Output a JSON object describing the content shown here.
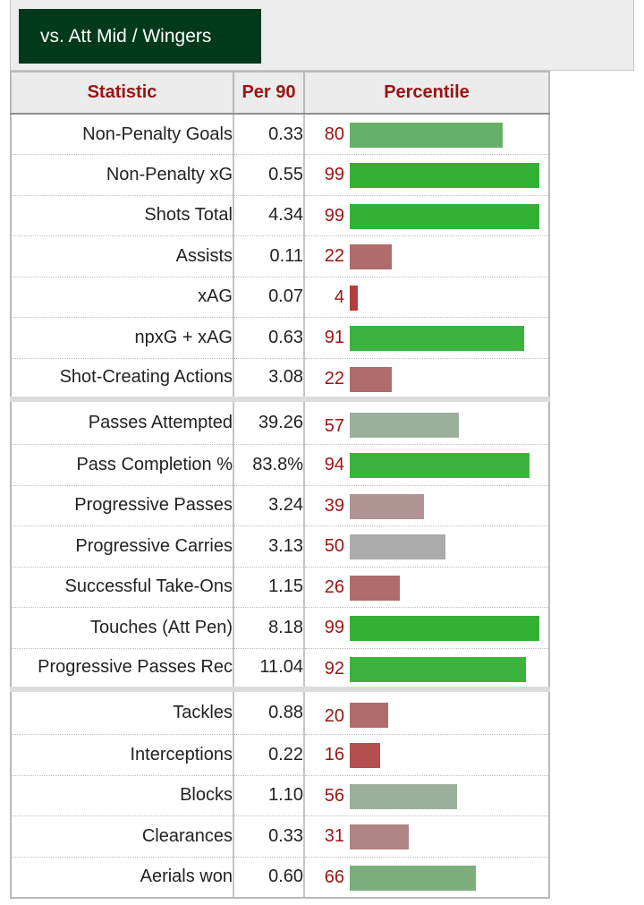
{
  "tab": {
    "label": "vs. Att Mid / Wingers"
  },
  "table": {
    "headers": {
      "statistic": "Statistic",
      "per90": "Per 90",
      "percentile": "Percentile"
    },
    "rows": [
      {
        "name": "Non-Penalty Goals",
        "per90": "0.33",
        "percentile": 80,
        "bar_color": "#67b067",
        "group_start": false
      },
      {
        "name": "Non-Penalty xG",
        "per90": "0.55",
        "percentile": 99,
        "bar_color": "#34b134",
        "group_start": false
      },
      {
        "name": "Shots Total",
        "per90": "4.34",
        "percentile": 99,
        "bar_color": "#34b134",
        "group_start": false
      },
      {
        "name": "Assists",
        "per90": "0.11",
        "percentile": 22,
        "bar_color": "#b06b6b",
        "group_start": false
      },
      {
        "name": "xAG",
        "per90": "0.07",
        "percentile": 4,
        "bar_color": "#b33f3f",
        "group_start": false
      },
      {
        "name": "npxG + xAG",
        "per90": "0.63",
        "percentile": 91,
        "bar_color": "#3cb33c",
        "group_start": false
      },
      {
        "name": "Shot-Creating Actions",
        "per90": "3.08",
        "percentile": 22,
        "bar_color": "#b06b6b",
        "group_start": false
      },
      {
        "name": "Passes Attempted",
        "per90": "39.26",
        "percentile": 57,
        "bar_color": "#9bb09b",
        "group_start": true
      },
      {
        "name": "Pass Completion %",
        "per90": "83.8%",
        "percentile": 94,
        "bar_color": "#3cb33c",
        "group_start": false
      },
      {
        "name": "Progressive Passes",
        "per90": "3.24",
        "percentile": 39,
        "bar_color": "#b09393",
        "group_start": false
      },
      {
        "name": "Progressive Carries",
        "per90": "3.13",
        "percentile": 50,
        "bar_color": "#ababab",
        "group_start": false
      },
      {
        "name": "Successful Take-Ons",
        "per90": "1.15",
        "percentile": 26,
        "bar_color": "#b06b6b",
        "group_start": false
      },
      {
        "name": "Touches (Att Pen)",
        "per90": "8.18",
        "percentile": 99,
        "bar_color": "#34b134",
        "group_start": false
      },
      {
        "name": "Progressive Passes Rec",
        "per90": "11.04",
        "percentile": 92,
        "bar_color": "#3cb33c",
        "group_start": false
      },
      {
        "name": "Tackles",
        "per90": "0.88",
        "percentile": 20,
        "bar_color": "#b06b6b",
        "group_start": true
      },
      {
        "name": "Interceptions",
        "per90": "0.22",
        "percentile": 16,
        "bar_color": "#b34f4f",
        "group_start": false
      },
      {
        "name": "Blocks",
        "per90": "1.10",
        "percentile": 56,
        "bar_color": "#9bb09b",
        "group_start": false
      },
      {
        "name": "Clearances",
        "per90": "0.33",
        "percentile": 31,
        "bar_color": "#b08585",
        "group_start": false
      },
      {
        "name": "Aerials won",
        "per90": "0.60",
        "percentile": 66,
        "bar_color": "#7dad7d",
        "group_start": false
      }
    ]
  }
}
